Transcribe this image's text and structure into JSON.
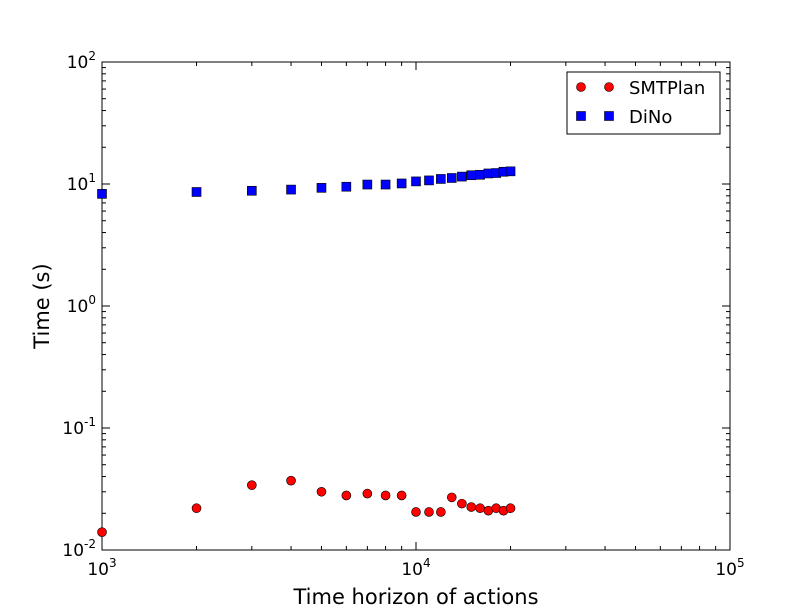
{
  "chart_data": {
    "type": "scatter",
    "xlabel": "Time horizon of actions",
    "ylabel": "Time (s)",
    "xscale": "log",
    "yscale": "log",
    "xlim": [
      1000,
      100000
    ],
    "ylim": [
      0.01,
      100
    ],
    "x_ticks": [
      {
        "value": 1000,
        "base": "10",
        "exp": "3"
      },
      {
        "value": 10000,
        "base": "10",
        "exp": "4"
      },
      {
        "value": 100000,
        "base": "10",
        "exp": "5"
      }
    ],
    "y_ticks": [
      {
        "value": 0.01,
        "base": "10",
        "exp": "-2"
      },
      {
        "value": 0.1,
        "base": "10",
        "exp": "-1"
      },
      {
        "value": 1,
        "base": "10",
        "exp": "0"
      },
      {
        "value": 10,
        "base": "10",
        "exp": "1"
      },
      {
        "value": 100,
        "base": "10",
        "exp": "2"
      }
    ],
    "legend_position": "top-right",
    "grid": false,
    "series": [
      {
        "name": "SMTPlan",
        "marker": "circle",
        "color": "#ff0000",
        "x": [
          1000,
          2000,
          3000,
          4000,
          5000,
          6000,
          7000,
          8000,
          9000,
          10000,
          11000,
          12000,
          13000,
          14000,
          15000,
          16000,
          17000,
          18000,
          19000,
          20000
        ],
        "y": [
          0.014,
          0.022,
          0.034,
          0.037,
          0.03,
          0.028,
          0.029,
          0.028,
          0.028,
          0.0205,
          0.0205,
          0.0205,
          0.027,
          0.024,
          0.0225,
          0.022,
          0.021,
          0.022,
          0.021,
          0.022
        ]
      },
      {
        "name": "DiNo",
        "marker": "square",
        "color": "#0000ff",
        "x": [
          1000,
          2000,
          3000,
          4000,
          5000,
          6000,
          7000,
          8000,
          9000,
          10000,
          11000,
          12000,
          13000,
          14000,
          15000,
          16000,
          17000,
          18000,
          19000,
          20000
        ],
        "y": [
          8.3,
          8.6,
          8.8,
          9.0,
          9.3,
          9.5,
          9.9,
          9.9,
          10.1,
          10.5,
          10.7,
          11.0,
          11.2,
          11.5,
          11.8,
          11.9,
          12.2,
          12.3,
          12.6,
          12.7
        ]
      }
    ]
  }
}
